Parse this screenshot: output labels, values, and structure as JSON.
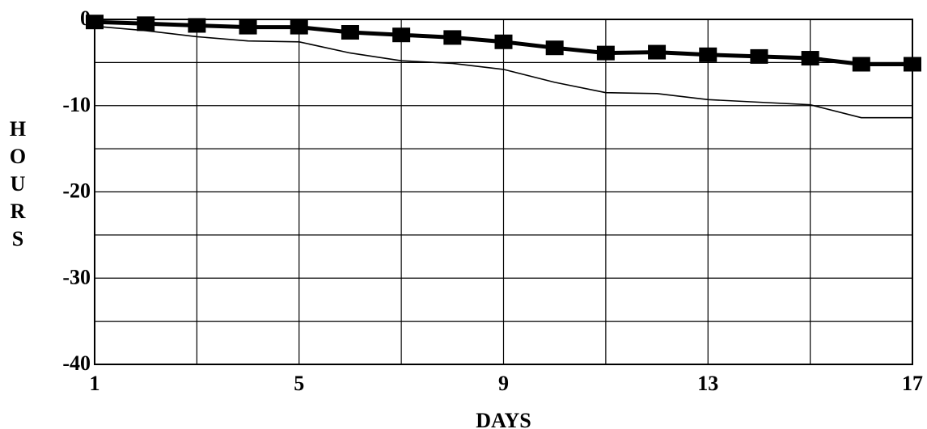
{
  "chart_data": {
    "type": "line",
    "title": "",
    "xlabel": "DAYS",
    "ylabel": "HOURS",
    "xlim": [
      1,
      17
    ],
    "ylim": [
      -40,
      0
    ],
    "x_ticks": [
      1,
      5,
      9,
      13,
      17
    ],
    "x_tick_labels": [
      "1",
      "5",
      "9",
      "13",
      "17"
    ],
    "y_ticks": [
      0,
      -10,
      -20,
      -30,
      -40
    ],
    "y_tick_labels": [
      "0",
      "-10",
      "-20",
      "-30",
      "-40"
    ],
    "grid": true,
    "legend": "none",
    "series": [
      {
        "marker": "square",
        "color": "#000000",
        "x": [
          1,
          2,
          3,
          4,
          5,
          6,
          7,
          8,
          9,
          10,
          11,
          12,
          13,
          14,
          15,
          16,
          17
        ],
        "values": [
          -0.3,
          -0.5,
          -0.7,
          -0.9,
          -0.9,
          -1.5,
          -1.8,
          -2.1,
          -2.6,
          -3.3,
          -3.9,
          -3.8,
          -4.1,
          -4.3,
          -4.5,
          -5.2,
          -5.2
        ]
      },
      {
        "marker": "none",
        "color": "#000000",
        "x": [
          1,
          2,
          3,
          4,
          5,
          6,
          7,
          8,
          9,
          10,
          11,
          12,
          13,
          14,
          15,
          16,
          17
        ],
        "values": [
          -0.8,
          -1.3,
          -2.0,
          -2.5,
          -2.6,
          -3.9,
          -4.8,
          -5.1,
          -5.8,
          -7.3,
          -8.5,
          -8.6,
          -9.3,
          -9.6,
          -9.9,
          -11.4,
          -11.4
        ]
      }
    ]
  }
}
